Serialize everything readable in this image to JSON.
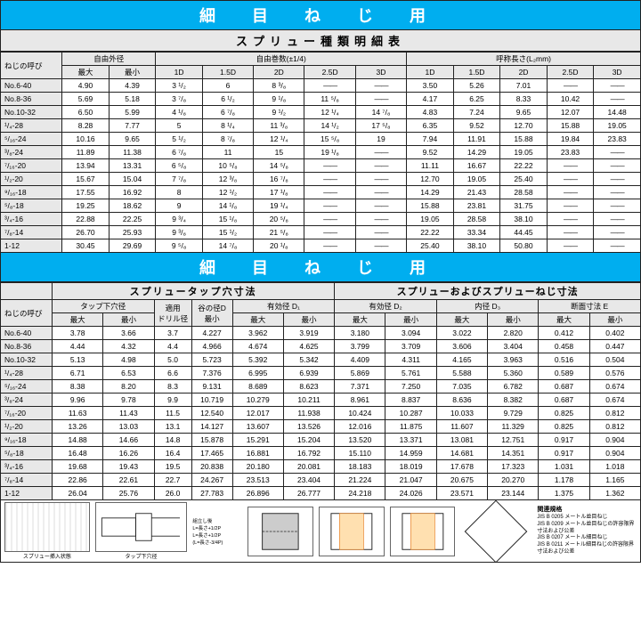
{
  "banner1": "細 目 ね じ 用",
  "subtitle1": "スプリュー種類明細表",
  "banner2": "細 目 ね じ 用",
  "t1": {
    "col_yobi": "ねじの呼び",
    "grp_dia": "自由外径",
    "grp_turns": "自由巻数(±1/4)",
    "grp_len": "呼称長さ(L₂mm)",
    "sub_max": "最大",
    "sub_min": "最小",
    "sub_1d": "1D",
    "sub_15d": "1.5D",
    "sub_2d": "2D",
    "sub_25d": "2.5D",
    "sub_3d": "3D",
    "rows": [
      [
        "No.6-40",
        "4.90",
        "4.39",
        "3 ¹/₂",
        "6",
        "8 ³/₈",
        "—",
        "—",
        "3.50",
        "5.26",
        "7.01",
        "—",
        "—"
      ],
      [
        "No.8-36",
        "5.69",
        "5.18",
        "3 ⁷/₈",
        "6 ¹/₂",
        "9 ¹/₈",
        "11 ⁵/₈",
        "—",
        "4.17",
        "6.25",
        "8.33",
        "10.42",
        "—"
      ],
      [
        "No.10-32",
        "6.50",
        "5.99",
        "4 ¹/₈",
        "6 ⁷/₈",
        "9 ¹/₂",
        "12 ¹/₄",
        "14 ⁷/₈",
        "4.83",
        "7.24",
        "9.65",
        "12.07",
        "14.48"
      ],
      [
        "¹/₄-28",
        "8.28",
        "7.77",
        "5",
        "8 ¹/₄",
        "11 ³/₈",
        "14 ¹/₂",
        "17 ⁵/₈",
        "6.35",
        "9.52",
        "12.70",
        "15.88",
        "19.05"
      ],
      [
        "⁵/₁₆-24",
        "10.16",
        "9.65",
        "5 ¹/₂",
        "8 ⁷/₈",
        "12 ¹/₄",
        "15 ⁵/₈",
        "19",
        "7.94",
        "11.91",
        "15.88",
        "19.84",
        "23.83"
      ],
      [
        "³/₈-24",
        "11.89",
        "11.38",
        "6 ⁷/₈",
        "11",
        "15",
        "19 ¹/₈",
        "—",
        "9.52",
        "14.29",
        "19.05",
        "23.83",
        "—"
      ],
      [
        "⁷/₁₆-20",
        "13.94",
        "13.31",
        "6 ⁵/₈",
        "10 ⁵/₈",
        "14 ⁵/₈",
        "—",
        "—",
        "11.11",
        "16.67",
        "22.22",
        "—",
        "—"
      ],
      [
        "¹/₂-20",
        "15.67",
        "15.04",
        "7 ⁷/₈",
        "12 ³/₈",
        "16 ⁷/₈",
        "—",
        "—",
        "12.70",
        "19.05",
        "25.40",
        "—",
        "—"
      ],
      [
        "⁹/₁₆-18",
        "17.55",
        "16.92",
        "8",
        "12 ¹/₂",
        "17 ¹/₈",
        "—",
        "—",
        "14.29",
        "21.43",
        "28.58",
        "—",
        "—"
      ],
      [
        "⁵/₈-18",
        "19.25",
        "18.62",
        "9",
        "14 ¹/₈",
        "19 ¹/₄",
        "—",
        "—",
        "15.88",
        "23.81",
        "31.75",
        "—",
        "—"
      ],
      [
        "³/₄-16",
        "22.88",
        "22.25",
        "9 ³/₄",
        "15 ¹/₈",
        "20 ⁵/₈",
        "—",
        "—",
        "19.05",
        "28.58",
        "38.10",
        "—",
        "—"
      ],
      [
        "⁷/₈-14",
        "26.70",
        "25.93",
        "9 ³/₈",
        "15 ¹/₂",
        "21 ⁵/₈",
        "—",
        "—",
        "22.22",
        "33.34",
        "44.45",
        "—",
        "—"
      ],
      [
        "1-12",
        "30.45",
        "29.69",
        "9 ⁵/₈",
        "14 ⁷/₈",
        "20 ¹/₈",
        "—",
        "—",
        "25.40",
        "38.10",
        "50.80",
        "—",
        "—"
      ]
    ]
  },
  "t2": {
    "grp_tap": "スプリュータップ穴寸法",
    "grp_thread": "スプリューおよびスプリューねじ寸法",
    "col_yobi": "ねじの呼び",
    "sg_tap_dia": "タップ下穴径",
    "sg_drill": "適用\nドリル径",
    "sg_valley": "谷の径D\n最小",
    "sg_eff1": "有効径 D₁",
    "sg_eff2": "有効径 D₂",
    "sg_inner": "内径 D₃",
    "sg_section": "断面寸法 E",
    "sub_max": "最大",
    "sub_min": "最小",
    "rows": [
      [
        "No.6-40",
        "3.78",
        "3.66",
        "3.7",
        "4.227",
        "3.962",
        "3.919",
        "3.180",
        "3.094",
        "3.022",
        "2.820",
        "0.412",
        "0.402"
      ],
      [
        "No.8-36",
        "4.44",
        "4.32",
        "4.4",
        "4.966",
        "4.674",
        "4.625",
        "3.799",
        "3.709",
        "3.606",
        "3.404",
        "0.458",
        "0.447"
      ],
      [
        "No.10-32",
        "5.13",
        "4.98",
        "5.0",
        "5.723",
        "5.392",
        "5.342",
        "4.409",
        "4.311",
        "4.165",
        "3.963",
        "0.516",
        "0.504"
      ],
      [
        "¹/₄-28",
        "6.71",
        "6.53",
        "6.6",
        "7.376",
        "6.995",
        "6.939",
        "5.869",
        "5.761",
        "5.588",
        "5.360",
        "0.589",
        "0.576"
      ],
      [
        "⁵/₁₆-24",
        "8.38",
        "8.20",
        "8.3",
        "9.131",
        "8.689",
        "8.623",
        "7.371",
        "7.250",
        "7.035",
        "6.782",
        "0.687",
        "0.674"
      ],
      [
        "³/₈-24",
        "9.96",
        "9.78",
        "9.9",
        "10.719",
        "10.279",
        "10.211",
        "8.961",
        "8.837",
        "8.636",
        "8.382",
        "0.687",
        "0.674"
      ],
      [
        "⁷/₁₆-20",
        "11.63",
        "11.43",
        "11.5",
        "12.540",
        "12.017",
        "11.938",
        "10.424",
        "10.287",
        "10.033",
        "9.729",
        "0.825",
        "0.812"
      ],
      [
        "¹/₂-20",
        "13.26",
        "13.03",
        "13.1",
        "14.127",
        "13.607",
        "13.526",
        "12.016",
        "11.875",
        "11.607",
        "11.329",
        "0.825",
        "0.812"
      ],
      [
        "⁹/₁₆-18",
        "14.88",
        "14.66",
        "14.8",
        "15.878",
        "15.291",
        "15.204",
        "13.520",
        "13.371",
        "13.081",
        "12.751",
        "0.917",
        "0.904"
      ],
      [
        "⁵/₈-18",
        "16.48",
        "16.26",
        "16.4",
        "17.465",
        "16.881",
        "16.792",
        "15.110",
        "14.959",
        "14.681",
        "14.351",
        "0.917",
        "0.904"
      ],
      [
        "³/₄-16",
        "19.68",
        "19.43",
        "19.5",
        "20.838",
        "20.180",
        "20.081",
        "18.183",
        "18.019",
        "17.678",
        "17.323",
        "1.031",
        "1.018"
      ],
      [
        "⁷/₈-14",
        "22.86",
        "22.61",
        "22.7",
        "24.267",
        "23.513",
        "23.404",
        "21.224",
        "21.047",
        "20.675",
        "20.270",
        "1.178",
        "1.165"
      ],
      [
        "1-12",
        "26.04",
        "25.76",
        "26.0",
        "27.783",
        "26.896",
        "26.777",
        "24.218",
        "24.026",
        "23.571",
        "23.144",
        "1.375",
        "1.362"
      ]
    ]
  },
  "diag_labels": {
    "l1": "スプリュー挿入状態",
    "l2": "タップ下穴径",
    "l3": "組立し後\nL=長さ+1/2P\nL=長さ+1/2P\n(L=長さ-3/4P)",
    "stds_title": "関連規格",
    "stds": [
      "JIS B 0205 メートル並目ねじ",
      "JIS B 0209 メートル並目ねじの許容限界寸法および公差",
      "JIS B 0207 メートル細目ねじ",
      "JIS B 0211 メートル細目ねじの許容限界寸法および公差"
    ]
  },
  "colors": {
    "banner_bg": "#00aeef",
    "header_bg": "#e8e8e8",
    "border": "#222222"
  }
}
